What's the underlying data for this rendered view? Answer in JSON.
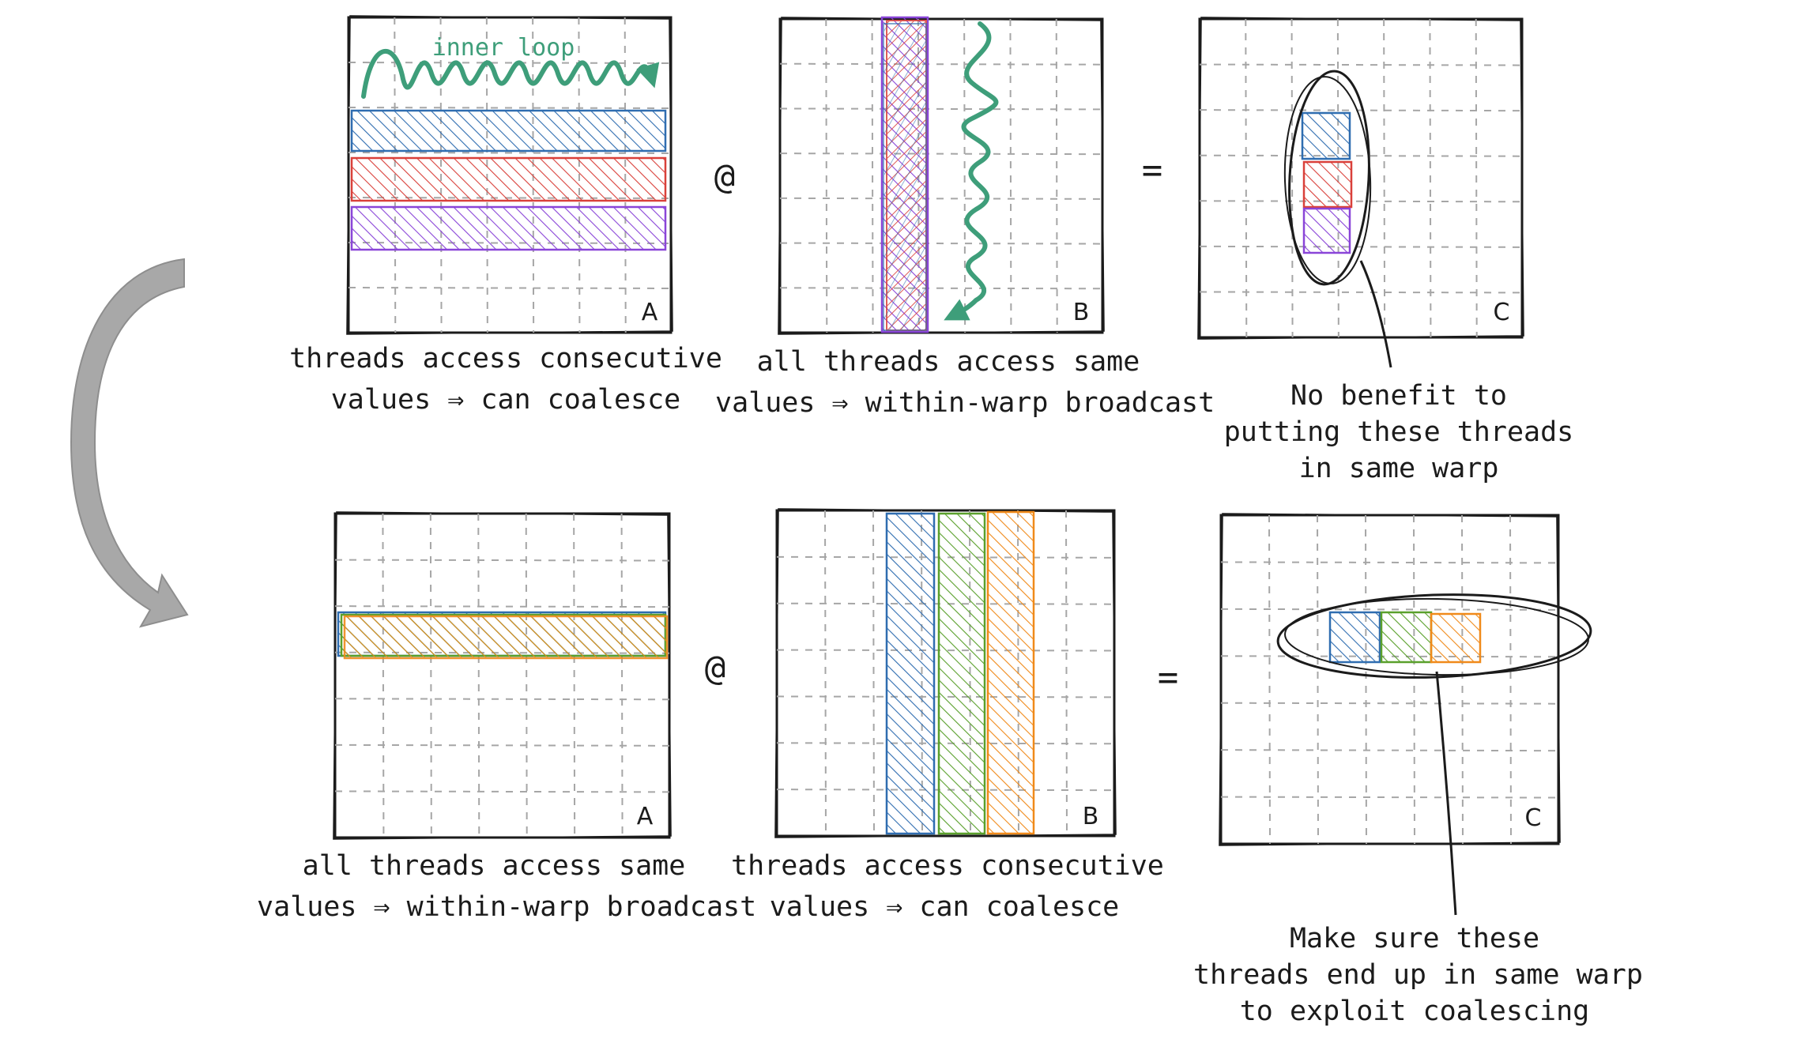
{
  "colors": {
    "blue": "#2f6db0",
    "red": "#d9403a",
    "purple": "#8a45d8",
    "green": "#5aa02c",
    "orange": "#f08a1a",
    "teal_arrow": "#3e9e7a",
    "grid": "#a6a6a6",
    "ink": "#1b1b1b",
    "big_arrow": "#a8a8a8"
  },
  "symbols": {
    "matmul": "@",
    "equals": "="
  },
  "top_row": {
    "matrix_a": {
      "letter": "A",
      "inner_loop_label": "inner loop",
      "caption_line1": "threads access consecutive",
      "caption_line2": "values ⇒ can coalesce"
    },
    "matrix_b": {
      "letter": "B",
      "caption_line1": "all threads access same",
      "caption_line2": "values ⇒ within-warp broadcast"
    },
    "matrix_c": {
      "letter": "C",
      "note_line1": "No benefit to",
      "note_line2": "putting these threads",
      "note_line3": "in same warp"
    }
  },
  "bottom_row": {
    "matrix_a": {
      "letter": "A",
      "caption_line1": "all threads access same",
      "caption_line2": "values ⇒ within-warp broadcast"
    },
    "matrix_b": {
      "letter": "B",
      "caption_line1": "threads access consecutive",
      "caption_line2": "values ⇒ can coalesce"
    },
    "matrix_c": {
      "letter": "C",
      "note_line1": "Make sure these",
      "note_line2": "threads end up in same warp",
      "note_line3": "to exploit coalescing"
    }
  }
}
